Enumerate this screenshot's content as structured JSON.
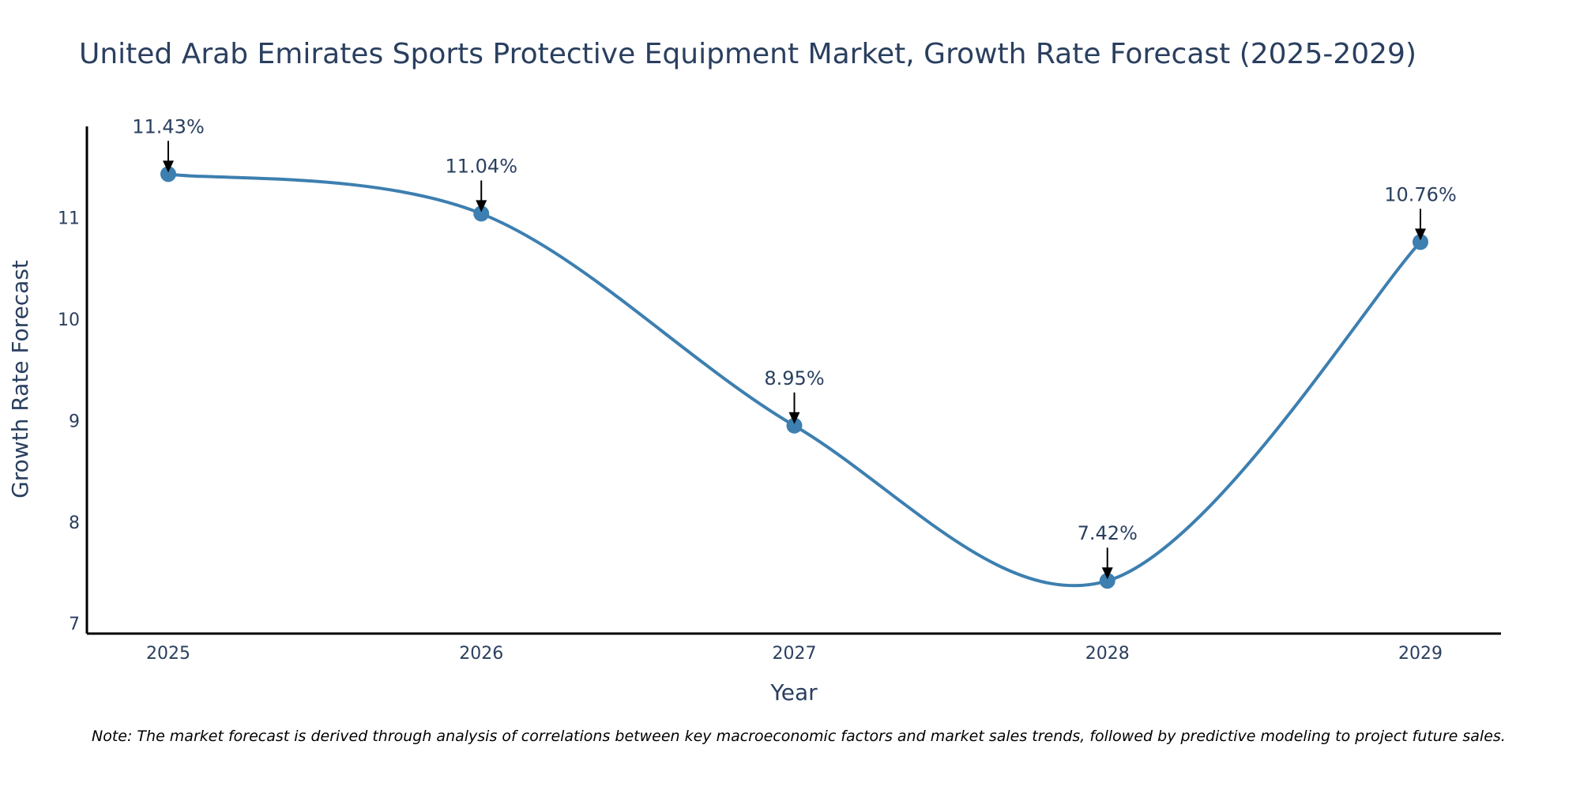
{
  "chart_data": {
    "type": "line",
    "title": "United Arab Emirates Sports Protective Equipment Market, Growth Rate Forecast (2025-2029)",
    "xlabel": "Year",
    "ylabel": "Growth Rate Forecast",
    "categories": [
      "2025",
      "2026",
      "2027",
      "2028",
      "2029"
    ],
    "series": [
      {
        "name": "Growth Rate Forecast",
        "values": [
          11.43,
          11.04,
          8.95,
          7.42,
          10.76
        ],
        "labels": [
          "11.43%",
          "11.04%",
          "8.95%",
          "7.42%",
          "10.76%"
        ]
      }
    ],
    "yticks": [
      7,
      8,
      9,
      10,
      11
    ],
    "ylim": [
      6.9,
      11.9
    ],
    "grid": false,
    "line_shape": "spline",
    "colors": {
      "line": "#3d7fb0",
      "marker": "#3d7fb0",
      "axis": "#000000",
      "text": "#2a3f5f"
    },
    "note": "Note: The market forecast is derived through analysis of correlations between key macroeconomic factors and market sales trends, followed by predictive modeling to project future sales."
  }
}
